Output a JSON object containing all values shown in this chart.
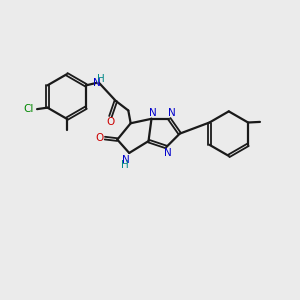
{
  "background_color": "#ebebeb",
  "bond_color": "#1a1a1a",
  "n_color": "#0000cc",
  "o_color": "#cc0000",
  "cl_color": "#008800",
  "h_color": "#008888",
  "figsize": [
    3.0,
    3.0
  ],
  "dpi": 100,
  "xlim": [
    0,
    10
  ],
  "ylim": [
    0,
    10
  ]
}
